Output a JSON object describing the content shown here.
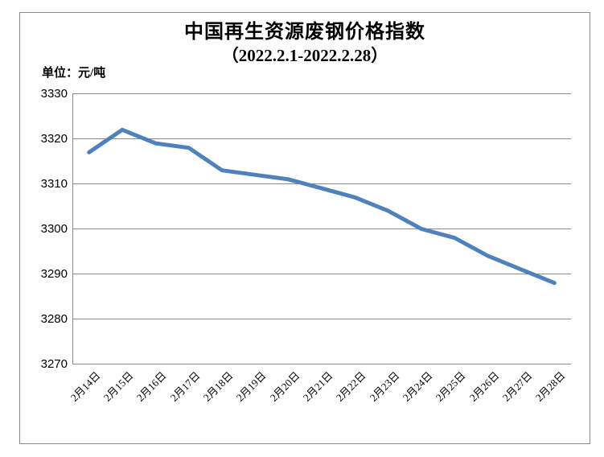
{
  "chart": {
    "title": "中国再生资源废钢价格指数",
    "subtitle": "（2022.2.1-2022.2.28）",
    "unit_label": "单位：元/吨"
  },
  "chart_data": {
    "type": "line",
    "title": "中国再生资源废钢价格指数",
    "subtitle": "（2022.2.1-2022.2.28）",
    "ylabel": "单位：元/吨",
    "xlabel": "",
    "categories": [
      "2月14日",
      "2月15日",
      "2月16日",
      "2月17日",
      "2月18日",
      "2月19日",
      "2月20日",
      "2月21日",
      "2月22日",
      "2月23日",
      "2月24日",
      "2月25日",
      "2月26日",
      "2月27日",
      "2月28日"
    ],
    "values": [
      3317,
      3322,
      3319,
      3318,
      3313,
      3312,
      3311,
      3309,
      3307,
      3304,
      3300,
      3298,
      3294,
      3291,
      3288
    ],
    "ylim": [
      3270,
      3330
    ],
    "ytick_step": 10,
    "yticks": [
      3330,
      3320,
      3310,
      3300,
      3290,
      3280,
      3270
    ],
    "grid": true,
    "legend_position": "none",
    "colors": {
      "line": "#4F81BD",
      "gridline": "#8a8a8a",
      "axis": "#8a8a8a",
      "frame_border": "#8a8a8a",
      "text": "#000000"
    }
  }
}
